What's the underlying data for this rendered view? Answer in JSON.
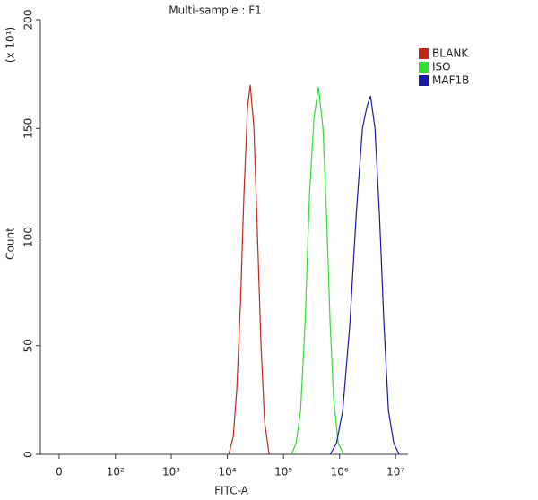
{
  "chart_data": {
    "type": "line",
    "title": "Multi-sample : F1",
    "x_label": "FITC-A",
    "y_label": "Count",
    "y_scale_label": "(x 10¹)",
    "xscale": "biexponential",
    "xlim": [
      -17,
      16600000
    ],
    "xticks": [
      0,
      {
        "value": 100,
        "label": "10²"
      },
      {
        "value": 1000,
        "label": "10³"
      },
      {
        "value": 10000,
        "label": "10⁴"
      },
      {
        "value": 100000,
        "label": "10⁵"
      },
      {
        "value": 1000000,
        "label": "10⁶"
      },
      {
        "value": 10000000,
        "label": "10⁷"
      }
    ],
    "ylim": [
      0,
      200
    ],
    "yticks": [
      0,
      50,
      100,
      150,
      200
    ],
    "legend": "right",
    "series": [
      {
        "name": "BLANK",
        "color": "#c0281a",
        "x": [
          10600,
          12700,
          14700,
          17100,
          19800,
          22900,
          25600,
          29700,
          34400,
          39800,
          46100,
          55500
        ],
        "values": [
          0,
          8,
          30,
          70,
          120,
          160,
          170,
          150,
          100,
          50,
          15,
          0
        ]
      },
      {
        "name": "ISO",
        "color": "#33dd33",
        "x": [
          139300,
          167500,
          201400,
          242100,
          291100,
          350000,
          420700,
          505800,
          586100,
          679200,
          787000,
          946200,
          1180000
        ],
        "values": [
          0,
          5,
          20,
          60,
          120,
          155,
          169,
          150,
          110,
          60,
          25,
          5,
          0
        ]
      },
      {
        "name": "MAF1B",
        "color": "#1a1aa0",
        "x": [
          679200,
          879000,
          1138000,
          1528000,
          1977000,
          2559000,
          3076000,
          3565000,
          4285000,
          5152000,
          6194000,
          7447000,
          9290000,
          11590000
        ],
        "values": [
          0,
          5,
          20,
          60,
          110,
          150,
          160,
          165,
          150,
          110,
          60,
          20,
          5,
          0
        ]
      }
    ]
  }
}
